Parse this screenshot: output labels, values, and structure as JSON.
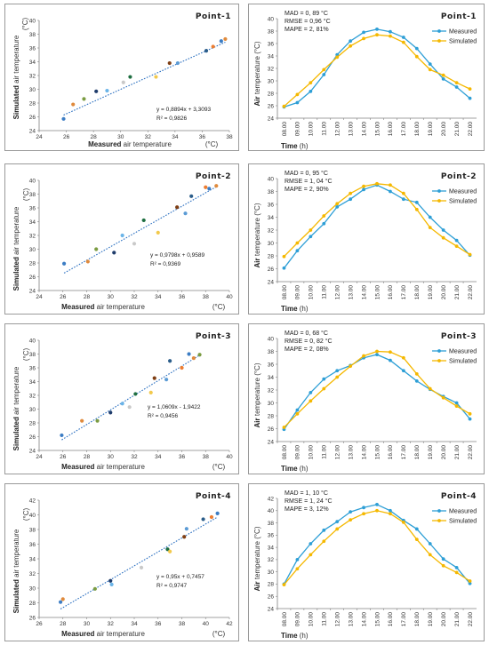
{
  "figure": {
    "scatter_panels": [
      {
        "title": "Point-1",
        "equation": "y = 0,8894x + 3,3093",
        "r2": "R² = 0,9826",
        "xlabel_bold": "Measured",
        "xlabel_rest": "air temperature",
        "xunit": "(°C)",
        "ylabel_bold": "Simulated",
        "ylabel_rest": "air temperature",
        "yunit": "(°C)"
      },
      {
        "title": "Point-2",
        "equation": "y = 0,9798x + 0,9589",
        "r2": "R² = 0,9369",
        "xlabel_bold": "Measured",
        "xlabel_rest": "air temperature",
        "xunit": "(°C)",
        "ylabel_bold": "Simulated",
        "ylabel_rest": "air temperature",
        "yunit": "(°C)"
      },
      {
        "title": "Point-3",
        "equation": "y = 1,0609x - 1,9422",
        "r2": "R² = 0,9456",
        "xlabel_bold": "Measured",
        "xlabel_rest": "air temperature",
        "xunit": "(°C)",
        "ylabel_bold": "Simulated",
        "ylabel_rest": "air temperature",
        "yunit": "(°C)"
      },
      {
        "title": "Point-4",
        "equation": "y = 0,95x + 0,7457",
        "r2": "R² = 0,9747",
        "xlabel_bold": "Measured",
        "xlabel_rest": "air temperature",
        "xunit": "(°C)",
        "ylabel_bold": "Simulated",
        "ylabel_rest": "air temperature",
        "yunit": "(°C)"
      }
    ],
    "line_panels": [
      {
        "title": "Point-1",
        "mad": "MAD = 0, 89 °C",
        "rmse": "RMSE = 0,96 °C",
        "mape": "MAPE = 2, 81%",
        "xlabel_bold": "Time",
        "xlabel_rest": "(h)",
        "ylabel_bold": "Air",
        "ylabel_rest": "temperature (°C)"
      },
      {
        "title": "Point-2",
        "mad": "MAD = 0, 95 °C",
        "rmse": "RMSE = 1, 04 °C",
        "mape": "MAPE = 2, 90%",
        "xlabel_bold": "Time",
        "xlabel_rest": "(h)",
        "ylabel_bold": "Air",
        "ylabel_rest": "temperature (°C)"
      },
      {
        "title": "Point-3",
        "mad": "MAD = 0, 68 °C",
        "rmse": "RMSE = 0, 82 °C",
        "mape": "MAPE = 2, 08%",
        "xlabel_bold": "Time",
        "xlabel_rest": "(h)",
        "ylabel_bold": "Air",
        "ylabel_rest": "temperature (°C)"
      },
      {
        "title": "Point-4",
        "mad": "MAD = 1, 10 °C",
        "rmse": "RMSE = 1, 24 °C",
        "mape": "MAPE = 3, 12%",
        "xlabel_bold": "Time",
        "xlabel_rest": "(h)",
        "ylabel_bold": "Air",
        "ylabel_rest": "temperature (°C)"
      }
    ]
  },
  "colors": {
    "measured": "#2e9fd6",
    "simulated": "#f5b800",
    "trendline": "#2a6fc0",
    "axis": "#808080",
    "point_palette": [
      "#3c7dc4",
      "#e08a3c",
      "#7b9c42",
      "#1f3c6b",
      "#6ab4e8",
      "#c9c9c9",
      "#1e6e40",
      "#f2c94c",
      "#7f3f14",
      "#5b9bd5",
      "#2b5d8a",
      "#ed7d31"
    ]
  },
  "chart_data": [
    {
      "type": "scatter",
      "title": "Point-1",
      "xlabel": "Measured air temperature",
      "xunit": "(°C)",
      "ylabel": "Simulated air temperature (°C)",
      "xlim": [
        24,
        38
      ],
      "ylim": [
        24,
        40
      ],
      "xticks": [
        24,
        26,
        28,
        30,
        32,
        34,
        36,
        38
      ],
      "yticks": [
        24,
        26,
        28,
        30,
        32,
        34,
        36,
        38,
        40
      ],
      "x": [
        25.8,
        26.5,
        27.3,
        28.2,
        29.0,
        30.2,
        30.7,
        32.6,
        33.6,
        34.2,
        36.3,
        36.8,
        37.4,
        37.7
      ],
      "y": [
        25.7,
        27.8,
        28.6,
        29.7,
        29.8,
        31.0,
        31.8,
        31.8,
        33.8,
        33.8,
        35.6,
        36.2,
        37.0,
        37.3
      ],
      "trend": {
        "slope": 0.8894,
        "intercept": 3.3093
      }
    },
    {
      "type": "line",
      "title": "Point-1",
      "xlabel": "Time (h)",
      "ylabel": "Air temperature (°C)",
      "categories": [
        "08.00",
        "09.00",
        "10.00",
        "11.00",
        "12.00",
        "13.00",
        "14.00",
        "15.00",
        "16.00",
        "17.00",
        "18.00",
        "19.00",
        "20.00",
        "21.00",
        "22.00"
      ],
      "ylim": [
        24,
        40
      ],
      "yticks": [
        24,
        26,
        28,
        30,
        32,
        34,
        36,
        38,
        40
      ],
      "series": [
        {
          "name": "Measured",
          "values": [
            25.8,
            26.5,
            28.3,
            31.0,
            34.2,
            36.4,
            37.8,
            38.3,
            37.9,
            37.0,
            35.2,
            32.7,
            30.3,
            29.0,
            27.2
          ]
        },
        {
          "name": "Simulated",
          "values": [
            25.9,
            27.8,
            29.7,
            31.8,
            33.8,
            35.6,
            36.8,
            37.4,
            37.2,
            36.2,
            33.9,
            31.8,
            30.9,
            29.7,
            28.7
          ]
        }
      ],
      "legend": "top-right"
    },
    {
      "type": "scatter",
      "title": "Point-2",
      "xlabel": "Measured air temperature",
      "xunit": "(°C)",
      "ylabel": "Simulated air temperature (°C)",
      "xlim": [
        24,
        40
      ],
      "ylim": [
        24,
        40
      ],
      "xticks": [
        24,
        26,
        28,
        30,
        32,
        34,
        36,
        38,
        40
      ],
      "yticks": [
        24,
        26,
        28,
        30,
        32,
        34,
        36,
        38,
        40
      ],
      "x": [
        26.1,
        28.1,
        28.8,
        30.3,
        31.0,
        32.0,
        32.8,
        34.0,
        35.6,
        36.3,
        36.8,
        38.0,
        38.3,
        38.9
      ],
      "y": [
        27.9,
        28.2,
        30.0,
        29.5,
        32.0,
        30.8,
        34.2,
        32.4,
        36.1,
        35.2,
        37.7,
        39.0,
        38.8,
        39.2
      ],
      "trend": {
        "slope": 0.9798,
        "intercept": 0.9589
      }
    },
    {
      "type": "line",
      "title": "Point-2",
      "xlabel": "Time (h)",
      "ylabel": "Air temperature (°C)",
      "categories": [
        "08.00",
        "09.00",
        "10.00",
        "11.00",
        "12.00",
        "13.00",
        "14.00",
        "15.00",
        "16.00",
        "17.00",
        "18.00",
        "19.00",
        "20.00",
        "21.00",
        "22.00"
      ],
      "ylim": [
        24,
        40
      ],
      "yticks": [
        24,
        26,
        28,
        30,
        32,
        34,
        36,
        38,
        40
      ],
      "series": [
        {
          "name": "Measured",
          "values": [
            26.1,
            28.8,
            31.0,
            33.0,
            35.6,
            36.8,
            38.3,
            39.0,
            38.0,
            36.8,
            36.3,
            34.0,
            32.0,
            30.4,
            28.1
          ]
        },
        {
          "name": "Simulated",
          "values": [
            27.9,
            30.0,
            32.0,
            34.2,
            36.1,
            37.7,
            38.8,
            39.2,
            39.0,
            37.7,
            35.2,
            32.4,
            30.8,
            29.5,
            28.2
          ]
        }
      ],
      "legend": "top-right"
    },
    {
      "type": "scatter",
      "title": "Point-3",
      "xlabel": "Measured air temperature",
      "xunit": "(°C)",
      "ylabel": "Simulated air temperature (°C)",
      "xlim": [
        24,
        40
      ],
      "ylim": [
        24,
        40
      ],
      "xticks": [
        24,
        26,
        28,
        30,
        32,
        34,
        36,
        38,
        40
      ],
      "yticks": [
        24,
        26,
        28,
        30,
        32,
        34,
        36,
        38,
        40
      ],
      "x": [
        25.9,
        27.6,
        28.9,
        30.0,
        31.0,
        31.6,
        32.1,
        33.4,
        33.7,
        34.7,
        35.0,
        36.0,
        36.6,
        37.0,
        37.5
      ],
      "y": [
        26.2,
        28.3,
        28.3,
        29.5,
        30.8,
        30.3,
        32.2,
        32.4,
        34.5,
        34.3,
        37.0,
        36.0,
        38.0,
        37.4,
        37.9
      ],
      "trend": {
        "slope": 1.0609,
        "intercept": -1.9422
      }
    },
    {
      "type": "line",
      "title": "Point-3",
      "xlabel": "Time (h)",
      "ylabel": "Air temperature (°C)",
      "categories": [
        "08.00",
        "09.00",
        "10.00",
        "11.00",
        "12.00",
        "13.00",
        "14.00",
        "15.00",
        "16.00",
        "17.00",
        "18.00",
        "19.00",
        "20.00",
        "21.00",
        "22.00"
      ],
      "ylim": [
        24,
        40
      ],
      "yticks": [
        24,
        26,
        28,
        30,
        32,
        34,
        36,
        38,
        40
      ],
      "series": [
        {
          "name": "Measured",
          "values": [
            25.9,
            28.9,
            31.6,
            33.7,
            35.0,
            35.8,
            37.0,
            37.5,
            36.6,
            35.0,
            33.4,
            32.1,
            31.0,
            30.0,
            27.5
          ]
        },
        {
          "name": "Simulated",
          "values": [
            26.2,
            28.3,
            30.3,
            32.2,
            34.0,
            35.7,
            37.3,
            38.0,
            37.9,
            37.0,
            34.5,
            32.2,
            30.8,
            29.5,
            28.3
          ]
        }
      ],
      "legend": "top-right"
    },
    {
      "type": "scatter",
      "title": "Point-4",
      "xlabel": "Measured air temperature",
      "xunit": "(°C)",
      "ylabel": "Simulated air temperature (°C)",
      "xlim": [
        26,
        42
      ],
      "ylim": [
        26,
        42
      ],
      "xticks": [
        26,
        28,
        30,
        32,
        34,
        36,
        38,
        40,
        42
      ],
      "yticks": [
        26,
        28,
        30,
        32,
        34,
        36,
        38,
        40,
        42
      ],
      "x": [
        27.8,
        28.0,
        30.7,
        32.0,
        32.1,
        34.6,
        36.8,
        37.0,
        38.2,
        38.4,
        39.8,
        40.5,
        41.0
      ],
      "y": [
        28.1,
        28.5,
        29.9,
        31.0,
        30.5,
        32.8,
        35.3,
        35.0,
        37.0,
        38.1,
        39.4,
        39.7,
        40.2
      ],
      "trend": {
        "slope": 0.95,
        "intercept": 0.7457
      }
    },
    {
      "type": "line",
      "title": "Point-4",
      "xlabel": "Time (h)",
      "ylabel": "Air temperature (°C)",
      "categories": [
        "08.00",
        "09.00",
        "10.00",
        "11.00",
        "12.00",
        "13.00",
        "14.00",
        "15.00",
        "16.00",
        "17.00",
        "18.00",
        "19.00",
        "20.00",
        "21.00",
        "22.00"
      ],
      "ylim": [
        24,
        42
      ],
      "yticks": [
        24,
        26,
        28,
        30,
        32,
        34,
        36,
        38,
        40,
        42
      ],
      "series": [
        {
          "name": "Measured",
          "values": [
            28.0,
            32.0,
            34.6,
            36.8,
            38.2,
            39.8,
            40.5,
            41.0,
            40.0,
            38.4,
            37.0,
            34.6,
            32.1,
            30.7,
            28.1
          ]
        },
        {
          "name": "Simulated",
          "values": [
            27.9,
            30.5,
            32.8,
            35.0,
            37.0,
            38.5,
            39.5,
            40.0,
            39.5,
            38.1,
            35.3,
            32.8,
            31.0,
            29.9,
            28.5
          ]
        }
      ],
      "legend": "top-right"
    }
  ]
}
